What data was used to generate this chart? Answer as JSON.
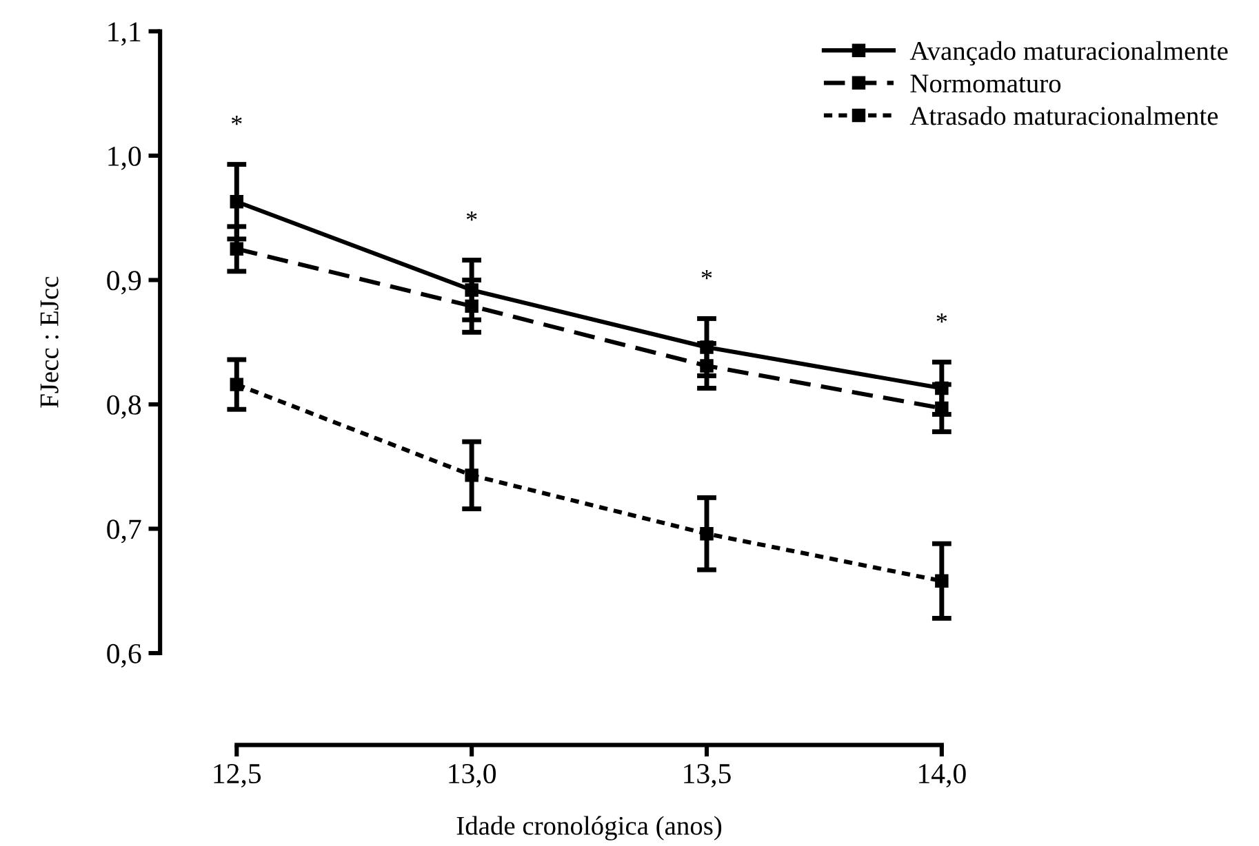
{
  "chart_data": {
    "type": "line",
    "xlabel": "Idade cronológica (anos)",
    "ylabel": "FJecc : EJcc",
    "x": [
      12.5,
      13.0,
      13.5,
      14.0
    ],
    "series": [
      {
        "name": "Avançado maturacionalmente",
        "color": "#000000",
        "line_style": "solid",
        "values": [
          0.963,
          0.892,
          0.846,
          0.813
        ],
        "errors": [
          0.03,
          0.024,
          0.023,
          0.021
        ]
      },
      {
        "name": "Normomaturo",
        "color": "#000000",
        "line_style": "dashed",
        "values": [
          0.925,
          0.879,
          0.831,
          0.797
        ],
        "errors": [
          0.018,
          0.021,
          0.018,
          0.019
        ]
      },
      {
        "name": "Atrasado maturacionalmente",
        "color": "#000000",
        "line_style": "dotted",
        "values": [
          0.816,
          0.743,
          0.696,
          0.658
        ],
        "errors": [
          0.02,
          0.027,
          0.029,
          0.03
        ]
      }
    ],
    "xlim": [
      12.5,
      14.0
    ],
    "xticks": [
      {
        "value": 12.5,
        "label": "12,5"
      },
      {
        "value": 13.0,
        "label": "13,0"
      },
      {
        "value": 13.5,
        "label": "13,5"
      },
      {
        "value": 14.0,
        "label": "14,0"
      }
    ],
    "ylim": [
      0.6,
      1.1
    ],
    "yticks": [
      {
        "value": 0.6,
        "label": "0,6"
      },
      {
        "value": 0.7,
        "label": "0,7"
      },
      {
        "value": 0.8,
        "label": "0,8"
      },
      {
        "value": 0.9,
        "label": "0,9"
      },
      {
        "value": 1.0,
        "label": "1,0"
      },
      {
        "value": 1.1,
        "label": "1,1"
      }
    ],
    "annotations": [
      "*",
      "*",
      "*",
      "*"
    ],
    "marker": "square",
    "grid": false,
    "legend": "top right"
  }
}
